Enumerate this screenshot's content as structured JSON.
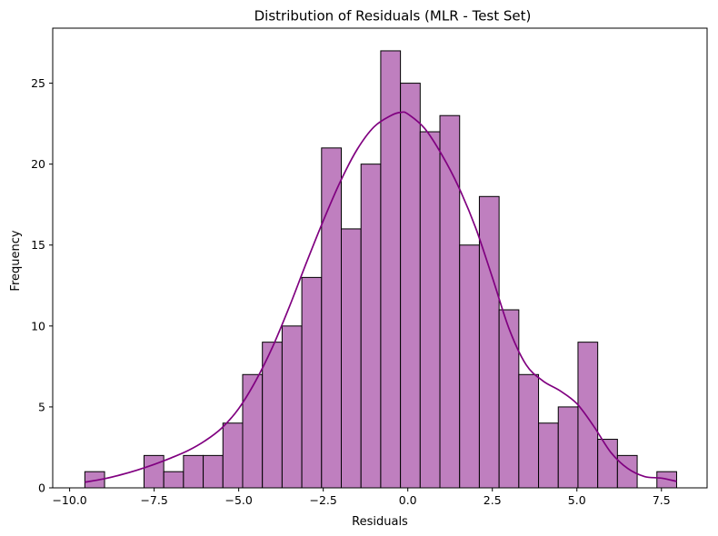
{
  "chart_data": {
    "type": "bar",
    "title": "Distribution of Residuals (MLR - Test Set)",
    "xlabel": "Residuals",
    "ylabel": "Frequency",
    "xlim": [
      -10.5,
      8.85
    ],
    "ylim": [
      0,
      28.4
    ],
    "x_ticks": [
      -10.0,
      -7.5,
      -5.0,
      -2.5,
      0.0,
      2.5,
      5.0,
      7.5
    ],
    "x_tick_labels": [
      "−10.0",
      "−7.5",
      "−5.0",
      "−2.5",
      "0.0",
      "2.5",
      "5.0",
      "7.5"
    ],
    "y_ticks": [
      0,
      5,
      10,
      15,
      20,
      25
    ],
    "y_tick_labels": [
      "0",
      "5",
      "10",
      "15",
      "20",
      "25"
    ],
    "grid": false,
    "bar_color": "#bf7fbf",
    "bar_edge_color": "#000000",
    "kde_color": "#800080",
    "bins": {
      "start": -9.55,
      "width": 0.5833,
      "counts": [
        1,
        0,
        0,
        2,
        1,
        2,
        2,
        4,
        7,
        9,
        10,
        13,
        21,
        16,
        20,
        27,
        25,
        22,
        23,
        15,
        18,
        11,
        7,
        4,
        5,
        9,
        3,
        2,
        0,
        1
      ]
    },
    "kde": {
      "x": [
        -9.55,
        -9.0,
        -8.5,
        -8.0,
        -7.5,
        -7.0,
        -6.5,
        -6.0,
        -5.5,
        -5.0,
        -4.5,
        -4.0,
        -3.5,
        -3.0,
        -2.5,
        -2.0,
        -1.5,
        -1.0,
        -0.5,
        -0.2,
        0.0,
        0.5,
        1.0,
        1.5,
        2.0,
        2.5,
        3.0,
        3.5,
        4.0,
        4.5,
        5.0,
        5.5,
        6.0,
        6.5,
        7.0,
        7.5,
        7.95
      ],
      "y": [
        0.35,
        0.55,
        0.8,
        1.1,
        1.45,
        1.85,
        2.3,
        2.9,
        3.7,
        4.9,
        6.6,
        8.7,
        11.2,
        13.9,
        16.5,
        18.9,
        20.9,
        22.3,
        23.0,
        23.2,
        23.1,
        22.2,
        20.6,
        18.6,
        16.1,
        13.0,
        9.8,
        7.6,
        6.6,
        6.0,
        5.2,
        3.8,
        2.2,
        1.2,
        0.7,
        0.6,
        0.4
      ]
    }
  }
}
